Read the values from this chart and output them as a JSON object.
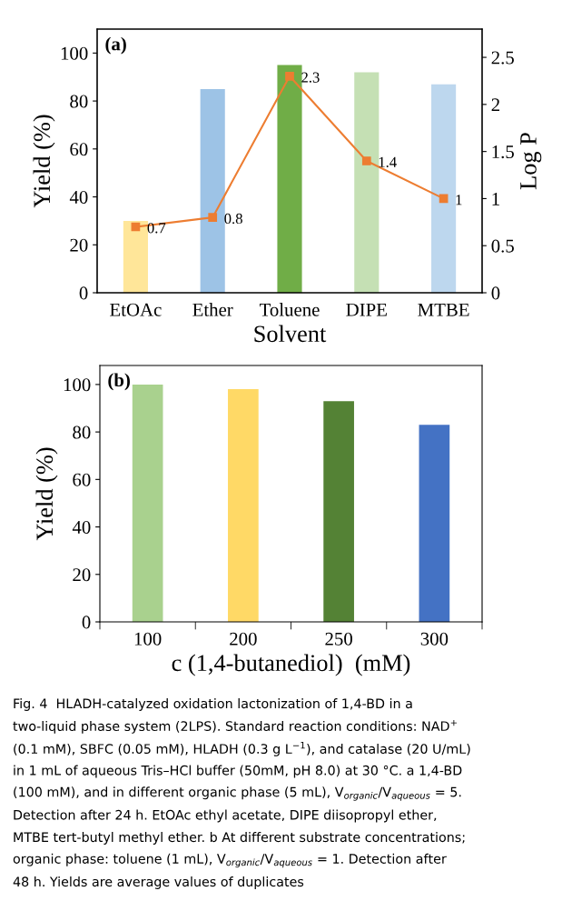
{
  "chart_data": [
    {
      "type": "bar",
      "xlabel": "Solvent",
      "ylabel": "Yield (%)",
      "y2label": "Log P",
      "categories": [
        "EtOAc",
        "Ether",
        "Toluene",
        "DIPE",
        "MTBE"
      ],
      "ylim": [
        0,
        110
      ],
      "yticks": [
        0,
        20,
        40,
        60,
        80,
        100
      ],
      "y2lim": [
        0,
        2.8
      ],
      "y2ticks": [
        0,
        0.5,
        1,
        1.5,
        2,
        2.5
      ],
      "series": [
        {
          "values": [
            30,
            85,
            95,
            92,
            87
          ],
          "colors": [
            "#ffe699",
            "#9dc3e6",
            "#70ad47",
            "#c5e0b4",
            "#bdd7ee"
          ]
        },
        {
          "type": "line",
          "axis": "y2",
          "color": "#ed7d31",
          "marker": "square",
          "values": [
            0.7,
            0.8,
            2.3,
            1.4,
            1
          ],
          "value_labels": [
            "0.7",
            "0.8",
            "2.3",
            "1.4",
            "1"
          ]
        }
      ],
      "annotations": [
        "(a)"
      ]
    },
    {
      "type": "bar",
      "xlabel": "c (1,4-butanediol)  (mM)",
      "ylabel": "Yield (%)",
      "categories": [
        "100",
        "200",
        "250",
        "300"
      ],
      "ylim": [
        0,
        108
      ],
      "yticks": [
        0,
        20,
        40,
        60,
        80,
        100
      ],
      "series": [
        {
          "values": [
            100,
            98,
            93,
            83
          ],
          "colors": [
            "#a9d18e",
            "#ffd966",
            "#548235",
            "#4472c4"
          ]
        }
      ],
      "annotations": [
        "(b)",
        "Fig. 4  HLADH-catalyzed oxidation lactonization of 1,4-BD in a",
        "two-liquid phase system (2LPS). Standard reaction conditions: NAD$^{+}$",
        "(0.1 mM), SBFC (0.05 mM), HLADH (0.3 g L$^{−1}$), and catalase (20 U/mL)",
        "in 1 mL of aqueous Tris–HCl buffer (50mM, pH 8.0) at 30 °C. a 1,4-BD",
        "(100 mM), and in different organic phase (5 mL), V$_{organic}$/V$_{aqueous}$ = 5.",
        "Detection after 24 h. EtOAc ethyl acetate, DIPE diisopropyl ether,",
        "MTBE tert-butyl methyl ether. b At different substrate concentrations;",
        "organic phase: toluene (1 mL), V$_{organic}$/V$_{aqueous}$ = 1. Detection after",
        "48 h. Yields are average values of duplicates"
      ]
    }
  ]
}
